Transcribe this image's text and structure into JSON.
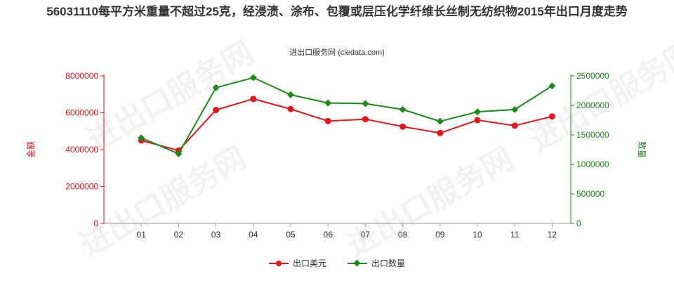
{
  "title": "56031110每平方米重量不超过25克，经浸渍、涂布、包覆或层压化学纤维长丝制无纺织物2015年出口月度走势",
  "source": "进出口服务网 (ciedata.com)",
  "watermark": "进出口服务网",
  "colors": {
    "series_value": "#e8141c",
    "series_qty": "#1a8a1a",
    "axis_left": "#e8141c",
    "axis_right": "#1a8a1a"
  },
  "chart_data": {
    "type": "line",
    "categories": [
      "01",
      "02",
      "03",
      "04",
      "05",
      "06",
      "07",
      "08",
      "09",
      "10",
      "11",
      "12"
    ],
    "y_left": {
      "label": "金额",
      "min": 0,
      "max": 8000000,
      "ticks": [
        0,
        2000000,
        4000000,
        6000000,
        8000000
      ]
    },
    "y_right": {
      "label": "数量",
      "min": 0,
      "max": 2500000,
      "ticks": [
        0,
        500000,
        1000000,
        1500000,
        2000000,
        2500000
      ]
    },
    "series": [
      {
        "name": "出口美元",
        "axis": "left",
        "values": [
          4500000,
          3950000,
          6150000,
          6750000,
          6200000,
          5550000,
          5650000,
          5250000,
          4900000,
          5600000,
          5300000,
          5800000
        ]
      },
      {
        "name": "出口数量",
        "axis": "right",
        "values": [
          1450000,
          1180000,
          2300000,
          2470000,
          2180000,
          2040000,
          2030000,
          1930000,
          1730000,
          1890000,
          1930000,
          2330000
        ]
      }
    ],
    "grid": false,
    "legend": "bottom"
  }
}
